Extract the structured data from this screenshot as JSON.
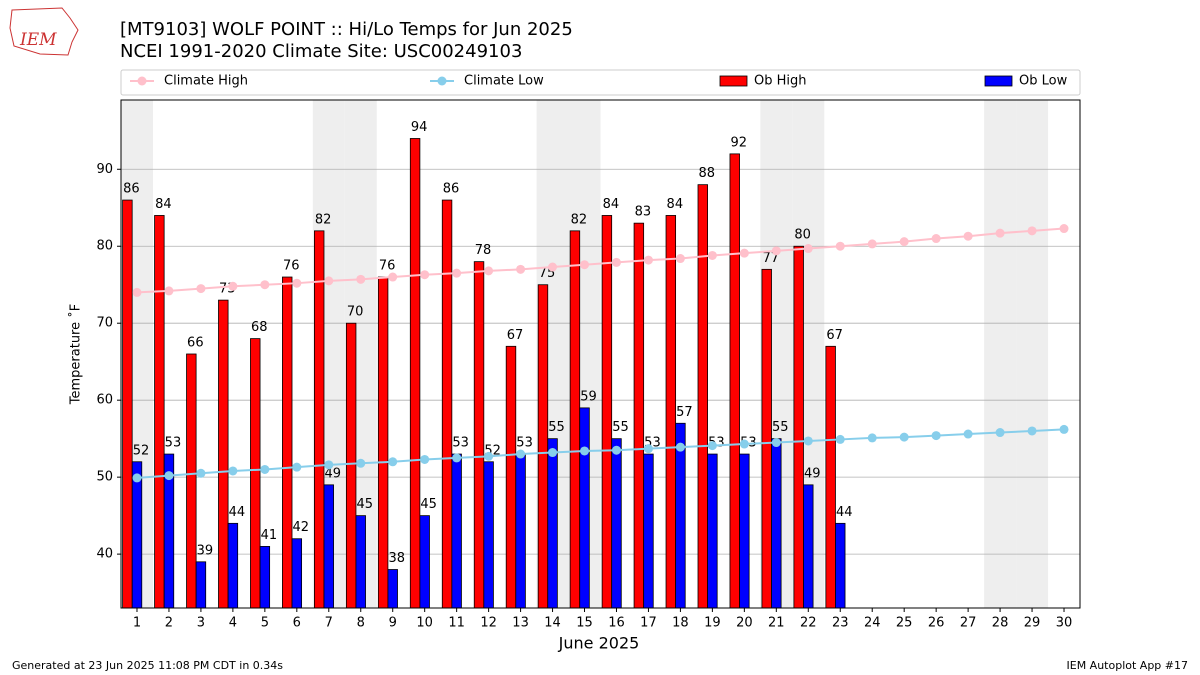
{
  "chart_data": {
    "type": "bar",
    "title": "[MT9103] WOLF POINT :: Hi/Lo Temps for Jun 2025",
    "subtitle": "NCEI 1991-2020 Climate Site: USC00249103",
    "logo_text": "IEM",
    "x_label": "June 2025",
    "y_label": "Temperature ˚F",
    "footer_left": "Generated at 23 Jun 2025 11:08 PM CDT in 0.34s",
    "footer_right": "IEM Autoplot App #17",
    "x": [
      1,
      2,
      3,
      4,
      5,
      6,
      7,
      8,
      9,
      10,
      11,
      12,
      13,
      14,
      15,
      16,
      17,
      18,
      19,
      20,
      21,
      22,
      23,
      24,
      25,
      26,
      27,
      28,
      29,
      30
    ],
    "xlim": [
      0.5,
      30.5
    ],
    "ylim": [
      33,
      99
    ],
    "yticks": [
      40,
      50,
      60,
      70,
      80,
      90
    ],
    "grid": true,
    "shaded_days": [
      1,
      7,
      8,
      14,
      15,
      21,
      22,
      28,
      29
    ],
    "series": [
      {
        "name": "Climate High",
        "kind": "line",
        "color": "#ffc0cb",
        "values": [
          74.0,
          74.2,
          74.5,
          74.8,
          75.0,
          75.2,
          75.5,
          75.7,
          76.0,
          76.3,
          76.5,
          76.8,
          77.0,
          77.3,
          77.6,
          77.9,
          78.2,
          78.4,
          78.8,
          79.1,
          79.4,
          79.7,
          80.0,
          80.3,
          80.6,
          81.0,
          81.3,
          81.7,
          82.0,
          82.3
        ]
      },
      {
        "name": "Climate Low",
        "kind": "line",
        "color": "#87ceeb",
        "values": [
          49.9,
          50.2,
          50.5,
          50.8,
          51.0,
          51.3,
          51.6,
          51.8,
          52.0,
          52.3,
          52.5,
          52.7,
          53.0,
          53.2,
          53.4,
          53.5,
          53.7,
          53.9,
          54.1,
          54.3,
          54.5,
          54.7,
          54.9,
          55.1,
          55.2,
          55.4,
          55.6,
          55.8,
          56.0,
          56.2
        ]
      },
      {
        "name": "Ob High",
        "kind": "bar",
        "color": "#ff0000",
        "values": [
          86,
          84,
          66,
          73,
          68,
          76,
          82,
          70,
          76,
          94,
          86,
          78,
          67,
          75,
          82,
          84,
          83,
          84,
          88,
          92,
          77,
          80,
          67,
          null,
          null,
          null,
          null,
          null,
          null,
          null
        ]
      },
      {
        "name": "Ob Low",
        "kind": "bar",
        "color": "#0000ff",
        "values": [
          52,
          53,
          39,
          44,
          41,
          42,
          49,
          45,
          38,
          45,
          53,
          52,
          53,
          55,
          59,
          55,
          53,
          57,
          53,
          53,
          55,
          49,
          44,
          null,
          null,
          null,
          null,
          null,
          null,
          null
        ]
      }
    ]
  }
}
